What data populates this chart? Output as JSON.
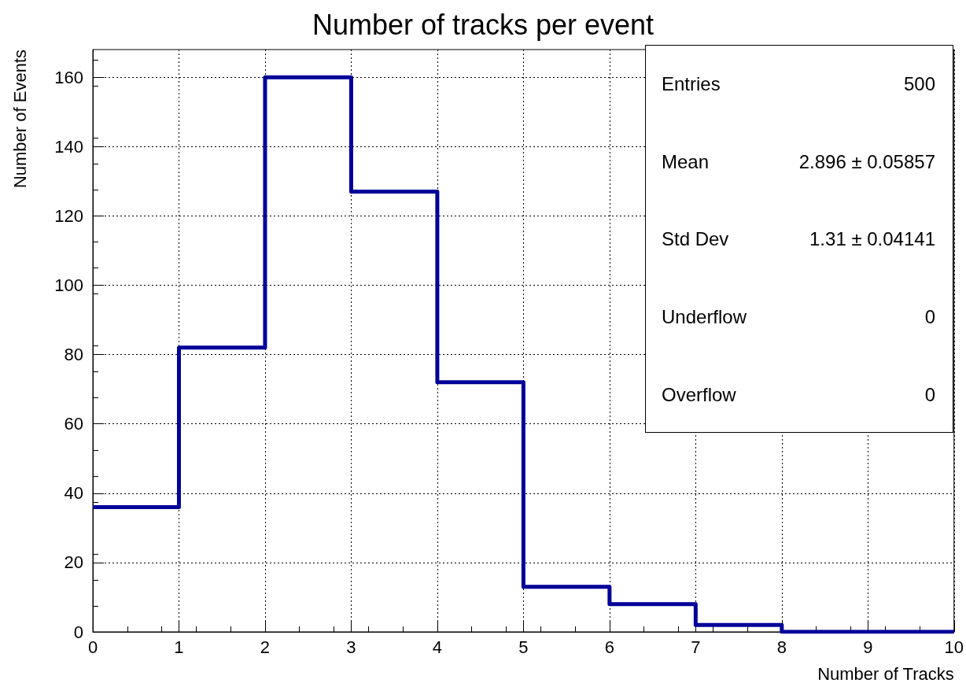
{
  "chart_data": {
    "type": "histogram",
    "title": "Number of tracks per event",
    "xlabel": "Number of Tracks",
    "ylabel": "Number of Events",
    "bins": [
      0,
      1,
      2,
      3,
      4,
      5,
      6,
      7,
      8,
      9,
      10
    ],
    "values": [
      36,
      82,
      160,
      127,
      72,
      13,
      8,
      2,
      0,
      0
    ],
    "color": "#000099",
    "xlim": [
      0,
      10
    ],
    "xticks": [
      0,
      1,
      2,
      3,
      4,
      5,
      6,
      7,
      8,
      9,
      10
    ],
    "ylim": [
      0,
      168
    ],
    "yticks": [
      0,
      20,
      40,
      60,
      80,
      100,
      120,
      140,
      160
    ],
    "grid": true,
    "annotations": [
      "Entries",
      "500",
      "Mean",
      "2.896 ± 0.05857",
      "Std Dev",
      "1.31 ± 0.04141",
      "Underflow",
      "0",
      "Overflow",
      "0"
    ]
  }
}
